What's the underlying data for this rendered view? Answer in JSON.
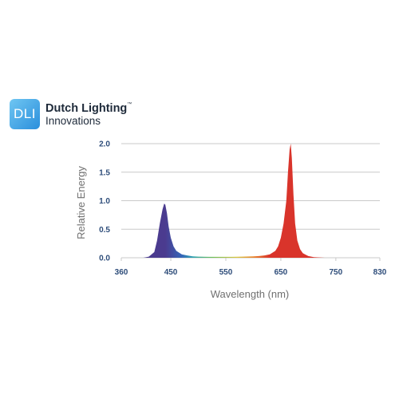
{
  "brand": {
    "badge_text": "DLI",
    "line1": "Dutch Lighting",
    "tm": "™",
    "line2": "Innovations",
    "badge_color_top": "#6fc6f2",
    "badge_color_bottom": "#2b8fdc"
  },
  "chart_data": {
    "type": "area",
    "title": "",
    "xlabel": "Wavelength (nm)",
    "ylabel": "Relative Energy",
    "xlim": [
      360,
      830
    ],
    "ylim": [
      0,
      2.0
    ],
    "x_ticks": [
      360,
      450,
      550,
      650,
      750,
      830
    ],
    "y_ticks": [
      "0.0",
      "0.5",
      "1.0",
      "1.5",
      "2.0"
    ],
    "grid": true,
    "legend": "none",
    "series": [
      {
        "x": [
          400,
          410,
          420,
          425,
          430,
          435,
          438,
          440,
          443,
          446,
          450,
          455,
          460,
          470,
          480,
          490,
          500,
          520,
          540,
          560,
          580,
          600,
          610,
          620,
          630,
          640,
          645,
          650,
          655,
          660,
          663,
          666,
          668,
          670,
          673,
          676,
          680,
          685,
          690,
          700,
          710,
          730
        ],
        "y": [
          0.0,
          0.02,
          0.1,
          0.3,
          0.6,
          0.85,
          0.95,
          0.93,
          0.78,
          0.55,
          0.35,
          0.2,
          0.12,
          0.06,
          0.04,
          0.025,
          0.02,
          0.015,
          0.015,
          0.015,
          0.02,
          0.025,
          0.03,
          0.04,
          0.06,
          0.12,
          0.2,
          0.35,
          0.6,
          1.0,
          1.5,
          1.9,
          2.0,
          1.75,
          1.1,
          0.6,
          0.3,
          0.15,
          0.08,
          0.03,
          0.01,
          0.0
        ]
      }
    ],
    "colors": {
      "violet": "#4b3b8f",
      "blue": "#3566b8",
      "teal": "#2fa3b0",
      "green": "#6cbf5a",
      "yellow": "#d9c640",
      "orange": "#e8852e",
      "red": "#d9342b"
    }
  }
}
